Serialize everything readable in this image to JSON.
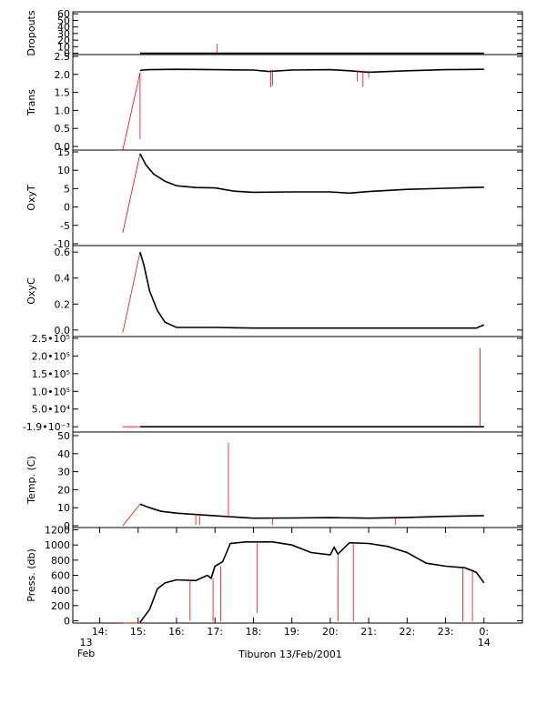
{
  "chart_data": {
    "type": "line",
    "title": "",
    "xlabel": "Tiburon 13/Feb/2001",
    "x_ticks": [
      {
        "value": 14,
        "label": "14:"
      },
      {
        "value": 15,
        "label": "15:"
      },
      {
        "value": 16,
        "label": "16:"
      },
      {
        "value": 17,
        "label": "17:"
      },
      {
        "value": 18,
        "label": "18:"
      },
      {
        "value": 19,
        "label": "19:"
      },
      {
        "value": 20,
        "label": "20:"
      },
      {
        "value": 21,
        "label": "21:"
      },
      {
        "value": 22,
        "label": "22:"
      },
      {
        "value": 23,
        "label": "23:"
      },
      {
        "value": 24,
        "label": "0:"
      }
    ],
    "x_date_start": {
      "line1": "13",
      "line2": "Feb"
    },
    "x_date_end": {
      "line1": "14"
    },
    "xlim": [
      13.3,
      25.0
    ],
    "colors": {
      "data": "#000000",
      "raw": "#ff0000",
      "axis": "#000000"
    },
    "panels": [
      {
        "ylabel": "Dropouts",
        "ylim": [
          -2,
          63
        ],
        "yticks": [
          {
            "v": 60,
            "t": "60"
          },
          {
            "v": 50,
            "t": "50"
          },
          {
            "v": 40,
            "t": "40"
          },
          {
            "v": 30,
            "t": "30"
          },
          {
            "v": 20,
            "t": "20"
          },
          {
            "v": 10,
            "t": "10"
          },
          {
            "v": 0,
            "t": "0"
          }
        ],
        "series": [
          {
            "role": "raw",
            "x": [
              14.6,
              15.05
            ],
            "y": [
              -2,
              -2
            ]
          },
          {
            "role": "data",
            "x": [
              15.05,
              24.0
            ],
            "y": [
              0,
              0
            ]
          },
          {
            "role": "raw",
            "x": [
              17.05,
              17.05
            ],
            "y": [
              0,
              14
            ]
          }
        ]
      },
      {
        "ylabel": "Trans",
        "ylim": [
          -0.1,
          2.55
        ],
        "yticks": [
          {
            "v": 2.5,
            "t": "2.5"
          },
          {
            "v": 2.0,
            "t": "2.0"
          },
          {
            "v": 1.5,
            "t": "1.5"
          },
          {
            "v": 1.0,
            "t": "1.0"
          },
          {
            "v": 0.5,
            "t": "0.5"
          },
          {
            "v": 0.0,
            "t": "0.0"
          }
        ],
        "series": [
          {
            "role": "raw",
            "x": [
              14.6,
              15.05
            ],
            "y": [
              -0.1,
              2.05
            ]
          },
          {
            "role": "raw",
            "x": [
              15.05,
              15.05
            ],
            "y": [
              2.05,
              0.2
            ]
          },
          {
            "role": "data",
            "x": [
              15.05,
              15.1,
              15.3,
              16.0,
              17.0,
              18.0,
              18.4,
              19.0,
              20.0,
              20.5,
              21.0,
              22.0,
              23.0,
              24.0
            ],
            "y": [
              2.1,
              2.12,
              2.13,
              2.14,
              2.13,
              2.12,
              2.08,
              2.12,
              2.13,
              2.1,
              2.06,
              2.1,
              2.13,
              2.14
            ]
          },
          {
            "role": "raw",
            "x": [
              18.45,
              18.45
            ],
            "y": [
              2.12,
              1.65
            ]
          },
          {
            "role": "raw",
            "x": [
              18.5,
              18.5
            ],
            "y": [
              2.12,
              1.7
            ]
          },
          {
            "role": "raw",
            "x": [
              20.7,
              20.7
            ],
            "y": [
              2.1,
              1.8
            ]
          },
          {
            "role": "raw",
            "x": [
              20.85,
              20.85
            ],
            "y": [
              2.1,
              1.65
            ]
          },
          {
            "role": "raw",
            "x": [
              21.0,
              21.0
            ],
            "y": [
              2.1,
              1.9
            ]
          }
        ]
      },
      {
        "ylabel": "OxyT",
        "ylim": [
          -10.5,
          15.5
        ],
        "yticks": [
          {
            "v": 15,
            "t": "15"
          },
          {
            "v": 10,
            "t": "10"
          },
          {
            "v": 5,
            "t": "5"
          },
          {
            "v": 0,
            "t": "0"
          },
          {
            "v": -5,
            "t": "-5"
          },
          {
            "v": -10,
            "t": "-10"
          }
        ],
        "series": [
          {
            "role": "raw",
            "x": [
              14.6,
              15.05
            ],
            "y": [
              -7,
              14.5
            ]
          },
          {
            "role": "data",
            "x": [
              15.05,
              15.2,
              15.4,
              15.7,
              16.0,
              16.5,
              17.0,
              17.5,
              18.0,
              19.0,
              20.0,
              20.5,
              21.0,
              22.0,
              23.0,
              24.0
            ],
            "y": [
              14.5,
              11.5,
              9.0,
              7.0,
              5.8,
              5.3,
              5.2,
              4.3,
              4.0,
              4.1,
              4.1,
              3.8,
              4.2,
              4.8,
              5.1,
              5.4
            ]
          }
        ]
      },
      {
        "ylabel": "OxyC",
        "ylim": [
          -0.05,
          0.65
        ],
        "yticks": [
          {
            "v": 0.6,
            "t": "0.6"
          },
          {
            "v": 0.4,
            "t": "0.4"
          },
          {
            "v": 0.2,
            "t": "0.2"
          },
          {
            "v": 0.0,
            "t": "0.0"
          }
        ],
        "series": [
          {
            "role": "raw",
            "x": [
              14.6,
              15.05
            ],
            "y": [
              -0.02,
              0.6
            ]
          },
          {
            "role": "data",
            "x": [
              15.05,
              15.15,
              15.3,
              15.5,
              15.7,
              16.0,
              17.0,
              18.0,
              20.0,
              22.0,
              23.8,
              24.0
            ],
            "y": [
              0.6,
              0.5,
              0.3,
              0.15,
              0.06,
              0.02,
              0.02,
              0.015,
              0.015,
              0.015,
              0.015,
              0.04
            ]
          }
        ]
      },
      {
        "ylabel": "",
        "ylim": [
          -15000,
          255000
        ],
        "yticks": [
          {
            "v": 250000,
            "t": "2.5•10⁵"
          },
          {
            "v": 200000,
            "t": "2.0•10⁵"
          },
          {
            "v": 150000,
            "t": "1.5•10⁵"
          },
          {
            "v": 100000,
            "t": "1.0•10⁵"
          },
          {
            "v": 50000,
            "t": "5.0•10⁴"
          },
          {
            "v": 0,
            "t": "-1.9•10⁻³"
          }
        ],
        "series": [
          {
            "role": "raw",
            "x": [
              14.6,
              15.05
            ],
            "y": [
              0,
              0
            ]
          },
          {
            "role": "data",
            "x": [
              15.05,
              24.0
            ],
            "y": [
              0,
              0
            ]
          },
          {
            "role": "raw",
            "x": [
              23.9,
              23.9
            ],
            "y": [
              0,
              222000
            ]
          }
        ]
      },
      {
        "ylabel": "Temp. (C)",
        "ylim": [
          -1,
          52
        ],
        "yticks": [
          {
            "v": 50,
            "t": "50"
          },
          {
            "v": 40,
            "t": "40"
          },
          {
            "v": 30,
            "t": "30"
          },
          {
            "v": 20,
            "t": "20"
          },
          {
            "v": 10,
            "t": "10"
          },
          {
            "v": 0,
            "t": "0"
          }
        ],
        "series": [
          {
            "role": "raw",
            "x": [
              14.6,
              15.05
            ],
            "y": [
              0,
              12
            ]
          },
          {
            "role": "data",
            "x": [
              15.05,
              15.3,
              15.6,
              16.0,
              17.0,
              18.0,
              19.0,
              20.0,
              21.0,
              22.0,
              23.0,
              24.0
            ],
            "y": [
              12,
              10,
              8,
              7,
              5.5,
              4.2,
              4.3,
              4.5,
              4.2,
              4.6,
              5.2,
              5.6
            ]
          },
          {
            "role": "raw",
            "x": [
              16.5,
              16.5
            ],
            "y": [
              6.5,
              0.5
            ]
          },
          {
            "role": "raw",
            "x": [
              16.6,
              16.6
            ],
            "y": [
              6.5,
              0.5
            ]
          },
          {
            "role": "raw",
            "x": [
              17.35,
              17.35
            ],
            "y": [
              5,
              46
            ]
          },
          {
            "role": "raw",
            "x": [
              18.5,
              18.5
            ],
            "y": [
              4.2,
              0.5
            ]
          },
          {
            "role": "raw",
            "x": [
              21.7,
              21.7
            ],
            "y": [
              4.3,
              0.5
            ]
          }
        ]
      },
      {
        "ylabel": "Press. (db)",
        "ylim": [
          -30,
          1230
        ],
        "yticks": [
          {
            "v": 1200,
            "t": "1200"
          },
          {
            "v": 1000,
            "t": "1000"
          },
          {
            "v": 800,
            "t": "800"
          },
          {
            "v": 600,
            "t": "600"
          },
          {
            "v": 400,
            "t": "400"
          },
          {
            "v": 200,
            "t": "200"
          },
          {
            "v": 0,
            "t": "0"
          }
        ],
        "series": [
          {
            "role": "raw",
            "x": [
              14.6,
              15.05
            ],
            "y": [
              -30,
              -30
            ]
          },
          {
            "role": "data",
            "x": [
              15.05,
              15.3,
              15.5,
              15.7,
              16.0,
              16.5,
              16.8,
              16.9,
              17.0,
              17.2,
              17.4,
              17.8,
              18.5,
              19.0,
              19.5,
              20.0,
              20.1,
              20.2,
              20.5,
              21.0,
              21.5,
              22.0,
              22.5,
              23.0,
              23.5,
              23.8,
              24.0
            ],
            "y": [
              -20,
              150,
              420,
              500,
              540,
              530,
              600,
              560,
              720,
              780,
              1020,
              1040,
              1040,
              1000,
              900,
              870,
              970,
              880,
              1030,
              1020,
              980,
              900,
              760,
              720,
              700,
              640,
              500
            ]
          },
          {
            "role": "raw",
            "x": [
              16.35,
              16.35
            ],
            "y": [
              540,
              0
            ]
          },
          {
            "role": "raw",
            "x": [
              16.95,
              16.95
            ],
            "y": [
              560,
              -10
            ]
          },
          {
            "role": "raw",
            "x": [
              17.15,
              17.15
            ],
            "y": [
              720,
              -10
            ]
          },
          {
            "role": "raw",
            "x": [
              18.1,
              18.1
            ],
            "y": [
              1040,
              100
            ]
          },
          {
            "role": "raw",
            "x": [
              20.2,
              20.2
            ],
            "y": [
              880,
              -10
            ]
          },
          {
            "role": "raw",
            "x": [
              20.6,
              20.6
            ],
            "y": [
              1030,
              -10
            ]
          },
          {
            "role": "raw",
            "x": [
              23.45,
              23.45
            ],
            "y": [
              700,
              -10
            ]
          },
          {
            "role": "raw",
            "x": [
              23.7,
              23.7
            ],
            "y": [
              680,
              -10
            ]
          }
        ]
      }
    ]
  }
}
